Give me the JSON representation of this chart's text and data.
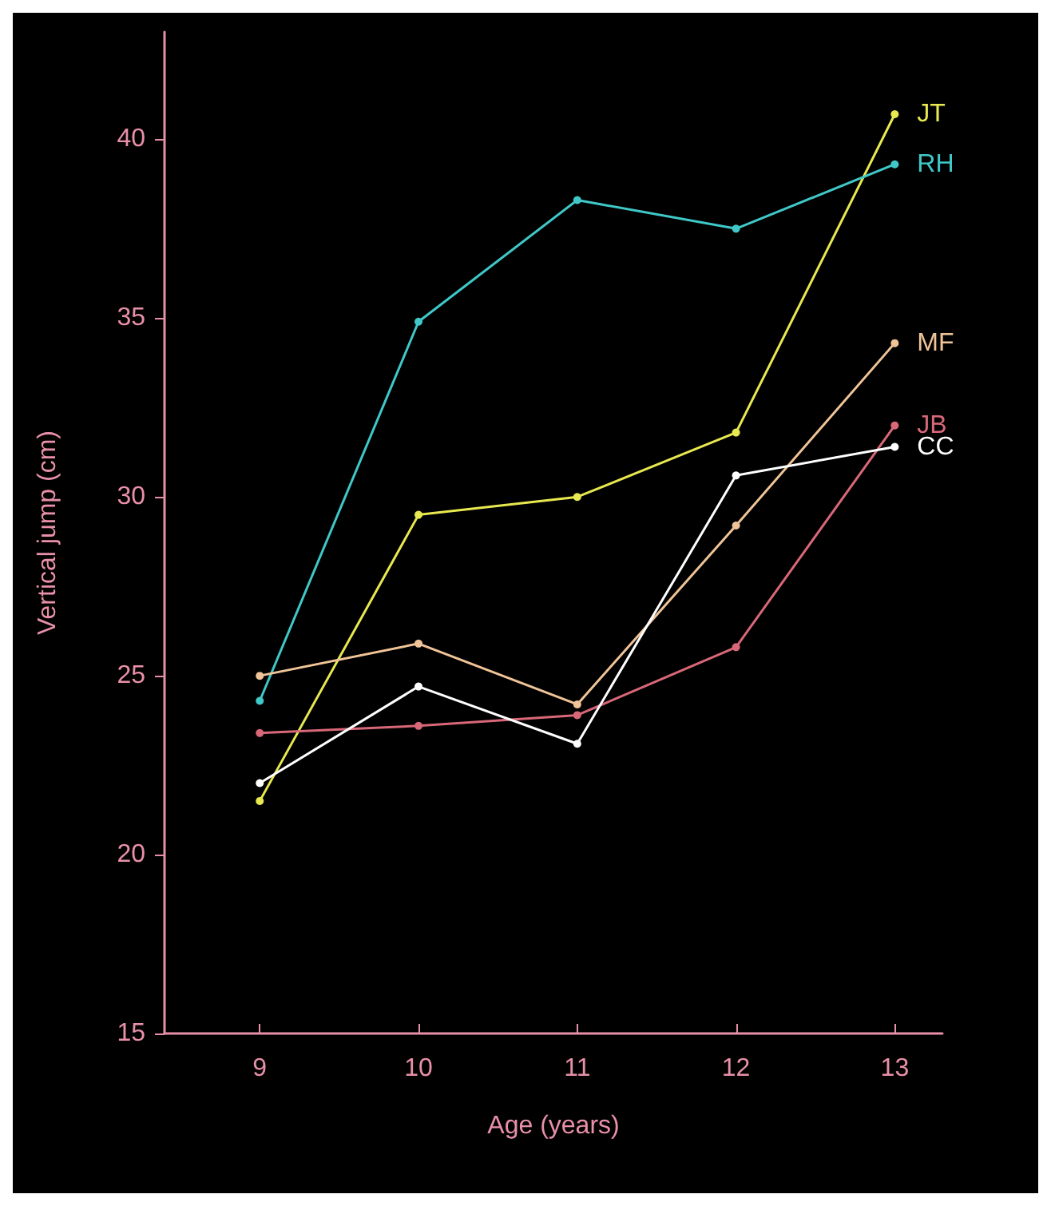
{
  "chart_data": {
    "type": "line",
    "xlabel": "Age (years)",
    "ylabel": "Vertical jump (cm)",
    "x": [
      9,
      10,
      11,
      12,
      13
    ],
    "series": [
      {
        "name": "JT",
        "color": "#e8e850",
        "values": [
          21.5,
          29.5,
          30.0,
          31.8,
          40.7
        ]
      },
      {
        "name": "RH",
        "color": "#40c8c8",
        "values": [
          24.3,
          34.9,
          38.3,
          37.5,
          39.3
        ]
      },
      {
        "name": "MF",
        "color": "#f0c498",
        "values": [
          25.0,
          25.9,
          24.2,
          29.2,
          34.3
        ]
      },
      {
        "name": "JB",
        "color": "#d86878",
        "values": [
          23.4,
          23.6,
          23.9,
          25.8,
          32.0
        ]
      },
      {
        "name": "CC",
        "color": "#ffffff",
        "values": [
          22.0,
          24.7,
          23.1,
          30.6,
          31.4
        ]
      }
    ],
    "xlim": [
      8.4,
      13.3
    ],
    "xticks": [
      9,
      10,
      11,
      12,
      13
    ],
    "ylim": [
      15,
      43
    ],
    "yticks": [
      15,
      20,
      25,
      30,
      35,
      40
    ],
    "grid": false,
    "legend": false,
    "marker": "circle",
    "line_style": "solid"
  }
}
